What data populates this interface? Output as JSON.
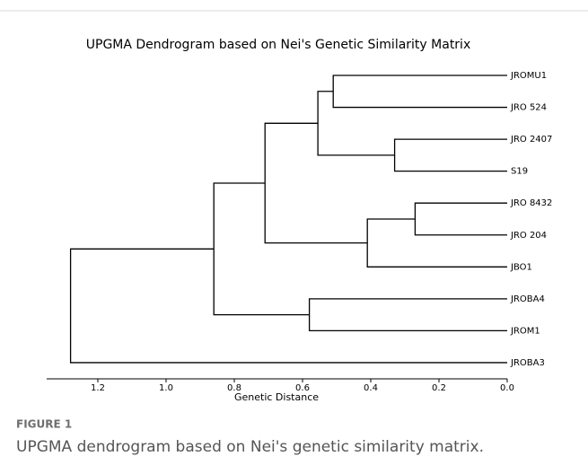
{
  "chart_data": {
    "type": "dendrogram",
    "title": "UPGMA Dendrogram based on Nei's Genetic Similarity Matrix",
    "xlabel": "Genetic Distance",
    "leaves": [
      "JROMU1",
      "JRO 524",
      "JRO 2407",
      "S19",
      "JRO 8432",
      "JRO 204",
      "JBO1",
      "JROBA4",
      "JROM1",
      "JROBA3"
    ],
    "merges": [
      {
        "left": 0,
        "right": 1,
        "height": 0.51
      },
      {
        "left": 2,
        "right": 3,
        "height": 0.33
      },
      {
        "left": 4,
        "right": 5,
        "height": 0.27
      },
      {
        "left": 10,
        "right": 11,
        "height": 0.555
      },
      {
        "left": 12,
        "right": 6,
        "height": 0.41
      },
      {
        "left": 13,
        "right": 14,
        "height": 0.71
      },
      {
        "left": 7,
        "right": 8,
        "height": 0.58
      },
      {
        "left": 15,
        "right": 16,
        "height": 0.86
      },
      {
        "left": 17,
        "right": 9,
        "height": 1.28
      }
    ],
    "color": "#000000",
    "xlim": [
      1.35,
      0
    ],
    "xticks": [
      1.2,
      {
        "value": 1,
        "label": "1.0"
      },
      0.8,
      0.6,
      0.4,
      0.2,
      {
        "value": 0,
        "label": "0.0"
      }
    ]
  },
  "figure": {
    "label": "FIGURE 1",
    "caption": "UPGMA dendrogram based on Nei's genetic similarity matrix."
  }
}
